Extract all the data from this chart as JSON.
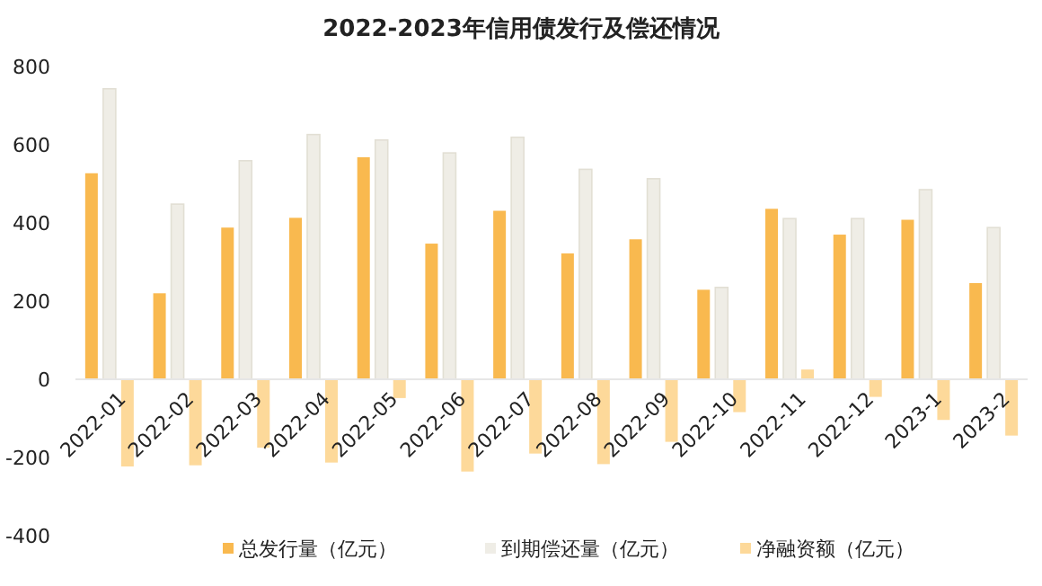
{
  "chart_data": {
    "type": "bar",
    "title": "2022-2023年信用债发行及偿还情况",
    "categories": [
      "2022-01",
      "2022-02",
      "2022-03",
      "2022-04",
      "2022-05",
      "2022-06",
      "2022-07",
      "2022-08",
      "2022-09",
      "2022-10",
      "2022-11",
      "2022-12",
      "2023-1",
      "2023-2"
    ],
    "series": [
      {
        "name": "总发行量（亿元）",
        "color": "#f9b94f",
        "values": [
          527,
          220,
          388,
          413,
          568,
          347,
          431,
          322,
          358,
          229,
          436,
          370,
          408,
          246
        ]
      },
      {
        "name": "到期偿还量（亿元）",
        "color": "#efede6",
        "values": [
          743,
          448,
          559,
          626,
          612,
          579,
          619,
          537,
          513,
          235,
          411,
          411,
          485,
          388
        ]
      },
      {
        "name": "净融资额（亿元）",
        "color": "#fdd99a",
        "values": [
          -223,
          -220,
          -175,
          -213,
          -48,
          -236,
          -190,
          -217,
          -160,
          -84,
          25,
          -45,
          -104,
          -144
        ]
      }
    ],
    "ylim": [
      -400,
      800
    ],
    "yticks": [
      -400,
      -200,
      0,
      200,
      400,
      600,
      800
    ],
    "grid": false,
    "legend": "bottom"
  }
}
